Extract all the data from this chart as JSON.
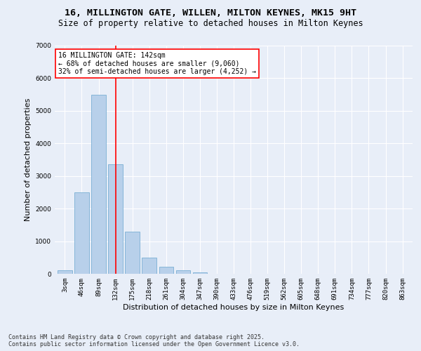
{
  "title_line1": "16, MILLINGTON GATE, WILLEN, MILTON KEYNES, MK15 9HT",
  "title_line2": "Size of property relative to detached houses in Milton Keynes",
  "xlabel": "Distribution of detached houses by size in Milton Keynes",
  "ylabel": "Number of detached properties",
  "categories": [
    "3sqm",
    "46sqm",
    "89sqm",
    "132sqm",
    "175sqm",
    "218sqm",
    "261sqm",
    "304sqm",
    "347sqm",
    "390sqm",
    "433sqm",
    "476sqm",
    "519sqm",
    "562sqm",
    "605sqm",
    "648sqm",
    "691sqm",
    "734sqm",
    "777sqm",
    "820sqm",
    "863sqm"
  ],
  "bar_values": [
    100,
    2500,
    5500,
    3350,
    1300,
    500,
    220,
    100,
    50,
    0,
    0,
    0,
    0,
    0,
    0,
    0,
    0,
    0,
    0,
    0,
    0
  ],
  "bar_color": "#b8d0ea",
  "bar_edge_color": "#7aafd4",
  "vline_x_idx": 3,
  "vline_color": "red",
  "annotation_text": "16 MILLINGTON GATE: 142sqm\n← 68% of detached houses are smaller (9,060)\n32% of semi-detached houses are larger (4,252) →",
  "annotation_box_color": "white",
  "annotation_box_edge_color": "red",
  "ylim": [
    0,
    7000
  ],
  "yticks": [
    0,
    1000,
    2000,
    3000,
    4000,
    5000,
    6000,
    7000
  ],
  "background_color": "#e8eef8",
  "grid_color": "white",
  "footer_line1": "Contains HM Land Registry data © Crown copyright and database right 2025.",
  "footer_line2": "Contains public sector information licensed under the Open Government Licence v3.0.",
  "title_fontsize": 9.5,
  "subtitle_fontsize": 8.5,
  "axis_label_fontsize": 8,
  "tick_fontsize": 6.5,
  "annotation_fontsize": 7,
  "footer_fontsize": 6
}
